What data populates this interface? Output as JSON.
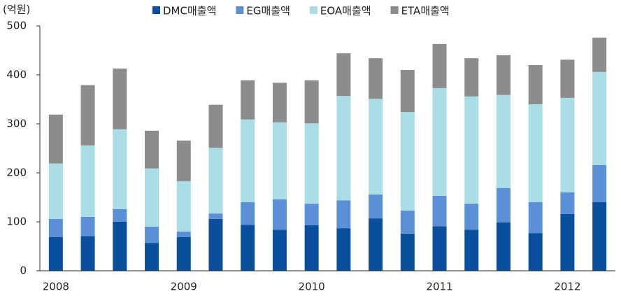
{
  "chart_data": {
    "type": "stacked_bar",
    "y_label": "(억원)",
    "categories": [
      "2008",
      null,
      null,
      null,
      "2009",
      null,
      null,
      null,
      "2010",
      null,
      null,
      null,
      "2011",
      null,
      null,
      null,
      "2012",
      null
    ],
    "series": [
      {
        "name": "DMC매출액",
        "color": "#0a4f9c",
        "values": [
          69,
          71,
          100,
          57,
          69,
          106,
          94,
          84,
          93,
          87,
          107,
          76,
          91,
          84,
          99,
          77,
          116,
          140
        ]
      },
      {
        "name": "EG매출액",
        "color": "#5b8fd6",
        "values": [
          37,
          39,
          26,
          33,
          11,
          11,
          46,
          62,
          44,
          57,
          49,
          47,
          62,
          53,
          70,
          63,
          44,
          76
        ]
      },
      {
        "name": "EOA매출액",
        "color": "#aadde6",
        "values": [
          113,
          146,
          163,
          119,
          103,
          134,
          169,
          157,
          164,
          213,
          195,
          201,
          220,
          219,
          190,
          200,
          193,
          190
        ]
      },
      {
        "name": "ETA매출액",
        "color": "#8c8c8c",
        "values": [
          100,
          123,
          124,
          77,
          83,
          88,
          80,
          81,
          88,
          87,
          83,
          86,
          90,
          78,
          81,
          80,
          78,
          70
        ]
      }
    ],
    "ylim": [
      0,
      500
    ],
    "yticks": [
      0,
      100,
      200,
      300,
      400,
      500
    ],
    "grid": false,
    "legend": "top"
  }
}
